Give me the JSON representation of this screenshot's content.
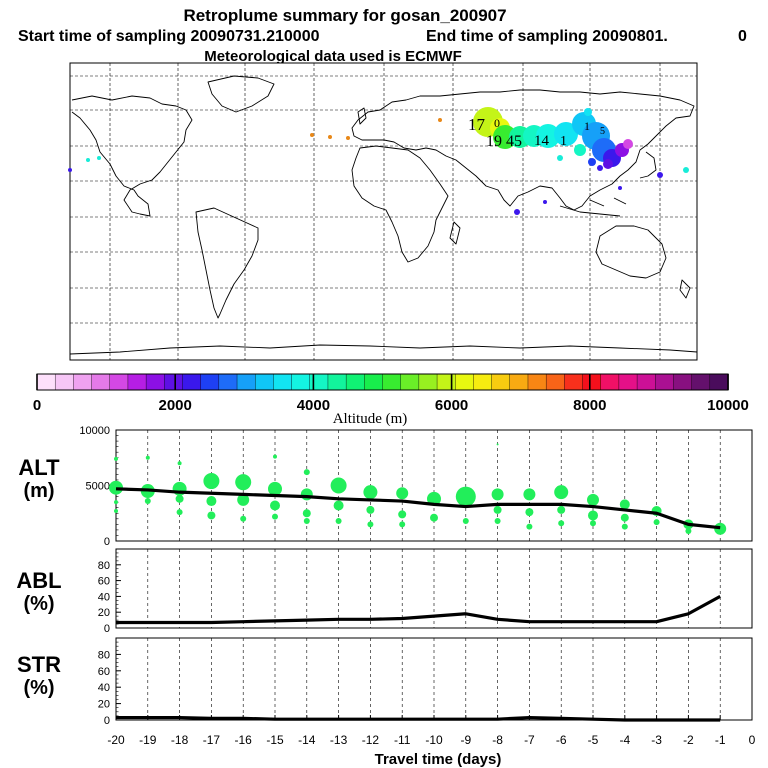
{
  "header": {
    "title": "Retroplume summary for gosan_200907",
    "start": "Start time of sampling 20090731.210000",
    "end": "End time of sampling 20090801.",
    "end_suffix": "0",
    "met": "Meteorological data used is ECMWF"
  },
  "map_labels": [
    "17",
    "0",
    "19",
    "45",
    "14",
    "1",
    "1",
    "5"
  ],
  "colorbar": {
    "title": "Altitude (m)",
    "ticks": [
      "0",
      "2000",
      "4000",
      "6000",
      "8000",
      "10000"
    ],
    "tick_values": [
      0,
      2000,
      4000,
      6000,
      8000,
      10000
    ],
    "range": [
      0,
      10000
    ],
    "colors": [
      "#fde0fb",
      "#f6c6f6",
      "#efa2f0",
      "#e47ae8",
      "#d448e4",
      "#b61ee4",
      "#8c10e4",
      "#5e10e4",
      "#3a18ec",
      "#1e40f4",
      "#1e6cf8",
      "#16a0f8",
      "#10c6f6",
      "#12e4f2",
      "#14f4e2",
      "#14f6c4",
      "#12f49c",
      "#10f274",
      "#18ee4c",
      "#38ec30",
      "#6aee28",
      "#98f020",
      "#c4f418",
      "#e8f810",
      "#f6ec10",
      "#f8cc10",
      "#f8aa12",
      "#f88614",
      "#f86418",
      "#f8301c",
      "#f4101c",
      "#f01066",
      "#e41088",
      "#cc1096",
      "#aa1092",
      "#881080",
      "#64106c",
      "#4a0c5c"
    ]
  },
  "chart_data": [
    {
      "type": "line",
      "panel": "ALT",
      "ylabel": "ALT",
      "yunit": "(m)",
      "yticks": [
        "0",
        "5000",
        "10000"
      ],
      "ylim": [
        0,
        10000
      ],
      "x": [
        -20,
        -19,
        -18,
        -17,
        -16,
        -15,
        -14,
        -13,
        -12,
        -11,
        -10,
        -9,
        -8,
        -7,
        -6,
        -5,
        -4,
        -3,
        -2,
        -1
      ],
      "values": [
        4700,
        4600,
        4400,
        4300,
        4200,
        4100,
        4000,
        3800,
        3700,
        3600,
        3300,
        3100,
        3300,
        3300,
        3300,
        3100,
        2800,
        2500,
        1500,
        1200
      ],
      "scatter": [
        {
          "x": -20,
          "y": 4800,
          "r": 7
        },
        {
          "x": -20,
          "y": 7400,
          "r": 2
        },
        {
          "x": -20,
          "y": 3500,
          "r": 2
        },
        {
          "x": -20,
          "y": 2700,
          "r": 2
        },
        {
          "x": -19,
          "y": 4500,
          "r": 7
        },
        {
          "x": -19,
          "y": 7500,
          "r": 2
        },
        {
          "x": -19,
          "y": 3600,
          "r": 3
        },
        {
          "x": -18,
          "y": 4700,
          "r": 7
        },
        {
          "x": -18,
          "y": 7000,
          "r": 2
        },
        {
          "x": -18,
          "y": 3800,
          "r": 4
        },
        {
          "x": -18,
          "y": 2600,
          "r": 3
        },
        {
          "x": -17,
          "y": 5400,
          "r": 8
        },
        {
          "x": -17,
          "y": 3600,
          "r": 5
        },
        {
          "x": -17,
          "y": 2300,
          "r": 4
        },
        {
          "x": -16,
          "y": 5300,
          "r": 8
        },
        {
          "x": -16,
          "y": 3700,
          "r": 6
        },
        {
          "x": -16,
          "y": 2000,
          "r": 3
        },
        {
          "x": -15,
          "y": 4700,
          "r": 7
        },
        {
          "x": -15,
          "y": 7600,
          "r": 2
        },
        {
          "x": -15,
          "y": 3200,
          "r": 5
        },
        {
          "x": -15,
          "y": 2200,
          "r": 3
        },
        {
          "x": -14,
          "y": 6200,
          "r": 3
        },
        {
          "x": -14,
          "y": 4200,
          "r": 6
        },
        {
          "x": -14,
          "y": 2500,
          "r": 4
        },
        {
          "x": -14,
          "y": 1800,
          "r": 3
        },
        {
          "x": -13,
          "y": 5000,
          "r": 8
        },
        {
          "x": -13,
          "y": 3200,
          "r": 5
        },
        {
          "x": -13,
          "y": 1800,
          "r": 3
        },
        {
          "x": -12,
          "y": 4400,
          "r": 7
        },
        {
          "x": -12,
          "y": 2800,
          "r": 4
        },
        {
          "x": -12,
          "y": 1500,
          "r": 3
        },
        {
          "x": -11,
          "y": 4300,
          "r": 6
        },
        {
          "x": -11,
          "y": 2400,
          "r": 4
        },
        {
          "x": -11,
          "y": 1500,
          "r": 3
        },
        {
          "x": -10,
          "y": 3800,
          "r": 7
        },
        {
          "x": -10,
          "y": 2100,
          "r": 4
        },
        {
          "x": -9,
          "y": 4000,
          "r": 10
        },
        {
          "x": -9,
          "y": 1800,
          "r": 3
        },
        {
          "x": -8,
          "y": 4200,
          "r": 6
        },
        {
          "x": -8,
          "y": 8700,
          "r": 1
        },
        {
          "x": -8,
          "y": 2800,
          "r": 4
        },
        {
          "x": -8,
          "y": 1800,
          "r": 3
        },
        {
          "x": -7,
          "y": 4200,
          "r": 6
        },
        {
          "x": -7,
          "y": 2600,
          "r": 4
        },
        {
          "x": -7,
          "y": 1300,
          "r": 3
        },
        {
          "x": -6,
          "y": 4400,
          "r": 7
        },
        {
          "x": -6,
          "y": 2800,
          "r": 4
        },
        {
          "x": -6,
          "y": 1600,
          "r": 3
        },
        {
          "x": -5,
          "y": 3700,
          "r": 6
        },
        {
          "x": -5,
          "y": 2300,
          "r": 5
        },
        {
          "x": -5,
          "y": 1600,
          "r": 3
        },
        {
          "x": -4,
          "y": 3300,
          "r": 5
        },
        {
          "x": -4,
          "y": 2100,
          "r": 4
        },
        {
          "x": -4,
          "y": 1300,
          "r": 3
        },
        {
          "x": -3,
          "y": 2700,
          "r": 5
        },
        {
          "x": -3,
          "y": 1700,
          "r": 3
        },
        {
          "x": -2,
          "y": 1500,
          "r": 5
        },
        {
          "x": -2,
          "y": 900,
          "r": 3
        },
        {
          "x": -1,
          "y": 1100,
          "r": 6
        }
      ]
    },
    {
      "type": "line",
      "panel": "ABL",
      "ylabel": "ABL",
      "yunit": "(%)",
      "yticks": [
        "0",
        "20",
        "40",
        "60",
        "80"
      ],
      "ylim": [
        0,
        100
      ],
      "x": [
        -20,
        -19,
        -18,
        -17,
        -16,
        -15,
        -14,
        -13,
        -12,
        -11,
        -10,
        -9,
        -8,
        -7,
        -6,
        -5,
        -4,
        -3,
        -2,
        -1
      ],
      "values": [
        7,
        7,
        7,
        7,
        8,
        9,
        10,
        11,
        11,
        12,
        15,
        18,
        11,
        8,
        8,
        8,
        8,
        8,
        18,
        40
      ]
    },
    {
      "type": "line",
      "panel": "STR",
      "ylabel": "STR",
      "yunit": "(%)",
      "yticks": [
        "0",
        "20",
        "40",
        "60",
        "80"
      ],
      "ylim": [
        0,
        100
      ],
      "xlabel": "Travel time (days)",
      "xticks": [
        "-20",
        "-19",
        "-18",
        "-17",
        "-16",
        "-15",
        "-14",
        "-13",
        "-12",
        "-11",
        "-10",
        "-9",
        "-8",
        "-7",
        "-6",
        "-5",
        "-4",
        "-3",
        "-2",
        "-1",
        "0"
      ],
      "x": [
        -20,
        -19,
        -18,
        -17,
        -16,
        -15,
        -14,
        -13,
        -12,
        -11,
        -10,
        -9,
        -8,
        -7,
        -6,
        -5,
        -4,
        -3,
        -2,
        -1
      ],
      "values": [
        3,
        3,
        3,
        2,
        2,
        1,
        1,
        1,
        1,
        1,
        1,
        1,
        1,
        3,
        2,
        1,
        0,
        0,
        0,
        0
      ]
    }
  ]
}
